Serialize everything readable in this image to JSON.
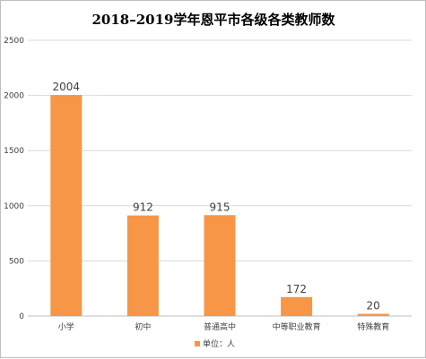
{
  "chart_data": {
    "type": "bar",
    "title": "2018–2019学年恩平市各级各类教师数",
    "categories": [
      "小学",
      "初中",
      "普通高中",
      "中等职业教育",
      "特殊教育"
    ],
    "values": [
      2004,
      912,
      915,
      172,
      20
    ],
    "ylim": [
      0,
      2500
    ],
    "yticks": [
      0,
      500,
      1000,
      1500,
      2000,
      2500
    ],
    "grid": true,
    "legend": {
      "label": "单位：人",
      "position": "bottom"
    },
    "bar_color": "#f79646"
  }
}
